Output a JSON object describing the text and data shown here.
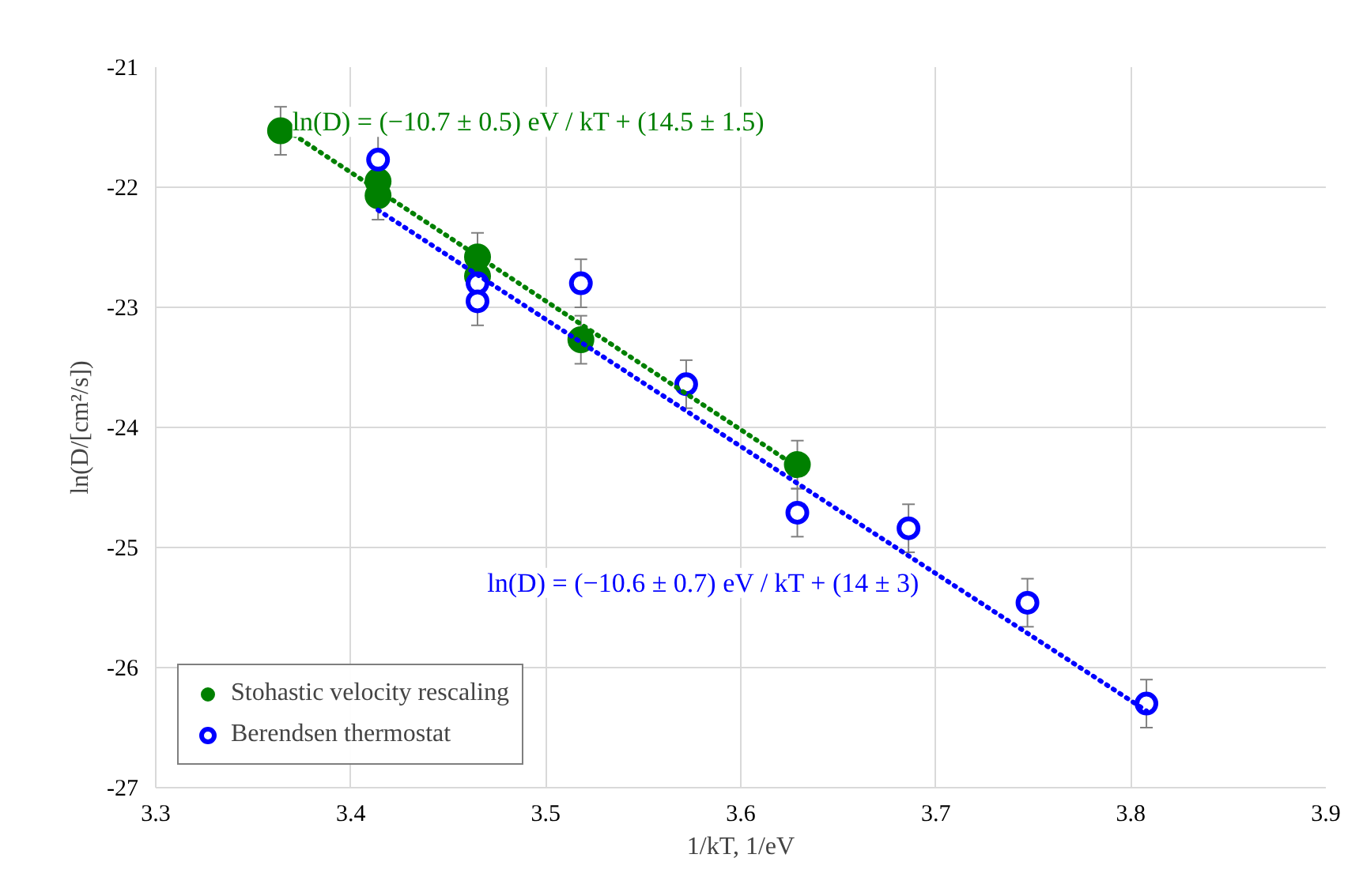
{
  "chart_data": {
    "type": "scatter",
    "xlabel": "1/kT, 1/eV",
    "ylabel": "ln(D/[cm²/s])",
    "xlim": [
      3.3,
      3.9
    ],
    "xticks": [
      3.3,
      3.4,
      3.5,
      3.6,
      3.7,
      3.8,
      3.9
    ],
    "ylim": [
      -27,
      -21
    ],
    "yticks": [
      -27,
      -26,
      -25,
      -24,
      -23,
      -22,
      -21
    ],
    "grid": true,
    "legend": "bottom left",
    "annotations": [
      "ln(D) = (−10.7 ± 0.5) eV / kT + (14.5 ± 1.5)",
      "ln(D) = (−10.6 ± 0.7) eV / kT + (14 ± 3)"
    ],
    "series": [
      {
        "name": "Stohastic velocity rescaling",
        "color": "#008000",
        "marker": "circle",
        "x": [
          3.364,
          3.414,
          3.414,
          3.465,
          3.465,
          3.518,
          3.629
        ],
        "values": [
          -21.53,
          -21.95,
          -22.07,
          -22.58,
          -22.74,
          -23.27,
          -24.31
        ],
        "errors": [
          0.2,
          null,
          0.2,
          0.2,
          null,
          0.2,
          0.2
        ]
      },
      {
        "name": "Berendsen thermostat",
        "color": "#0000ff",
        "marker": "circle",
        "x": [
          3.414,
          3.465,
          3.465,
          3.518,
          3.572,
          3.629,
          3.686,
          3.747,
          3.808
        ],
        "values": [
          -21.77,
          -22.8,
          -22.95,
          -22.8,
          -23.64,
          -24.71,
          -24.84,
          -25.46,
          -26.3
        ],
        "errors": [
          0.2,
          null,
          0.2,
          0.2,
          0.2,
          0.2,
          0.2,
          0.2,
          0.2
        ]
      },
      {
        "type": "line",
        "color": "#008000",
        "line_style": "dotted",
        "x": [
          3.364,
          3.629
        ],
        "values": [
          -21.49,
          -24.33
        ]
      },
      {
        "type": "line",
        "color": "#0000ff",
        "line_style": "dotted",
        "x": [
          3.414,
          3.808
        ],
        "values": [
          -22.19,
          -26.36
        ]
      }
    ]
  }
}
